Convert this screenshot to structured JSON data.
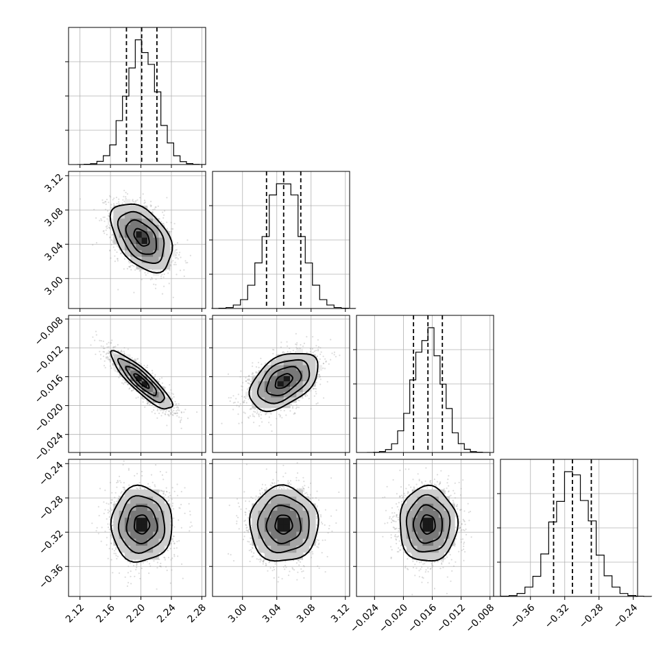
{
  "chart_data": {
    "type": "corner",
    "parameters": [
      {
        "mean": 2.201,
        "sigma": 0.02,
        "q16": 2.181,
        "q50": 2.201,
        "q84": 2.221,
        "range": [
          2.105,
          2.285
        ],
        "ticks": [
          2.12,
          2.16,
          2.2,
          2.24,
          2.28
        ],
        "tick_labels": [
          "2.12",
          "2.16",
          "2.20",
          "2.24",
          "2.28"
        ]
      },
      {
        "mean": 3.048,
        "sigma": 0.02,
        "q16": 3.028,
        "q50": 3.048,
        "q84": 3.068,
        "range": [
          2.965,
          3.125
        ],
        "ticks": [
          3.0,
          3.04,
          3.08,
          3.12
        ],
        "tick_labels": [
          "3.00",
          "3.04",
          "3.08",
          "3.12"
        ]
      },
      {
        "mean": -0.0166,
        "sigma": 0.002,
        "q16": -0.0186,
        "q50": -0.0166,
        "q84": -0.0146,
        "range": [
          -0.0265,
          -0.0075
        ],
        "ticks": [
          -0.024,
          -0.02,
          -0.016,
          -0.012,
          -0.008
        ],
        "tick_labels": [
          "−0.024",
          "−0.020",
          "−0.016",
          "−0.012",
          "−0.008"
        ]
      },
      {
        "mean": -0.311,
        "sigma": 0.022,
        "q16": -0.333,
        "q50": -0.311,
        "q84": -0.289,
        "range": [
          -0.395,
          -0.235
        ],
        "ticks": [
          -0.36,
          -0.32,
          -0.28,
          -0.24
        ],
        "tick_labels": [
          "−0.36",
          "−0.32",
          "−0.28",
          "−0.24"
        ]
      }
    ],
    "correlations": {
      "1-0": -0.45,
      "2-0": -0.88,
      "2-1": 0.45,
      "3-0": 0.0,
      "3-1": 0.0,
      "3-2": 0.0
    },
    "histogram_bins": 20,
    "contour_levels_sigma": [
      0.5,
      1.0,
      1.5,
      2.0
    ],
    "grid": true,
    "colors": {
      "hist": "#000000",
      "scatter": "#9a9a9a",
      "contour": "#000000"
    }
  }
}
